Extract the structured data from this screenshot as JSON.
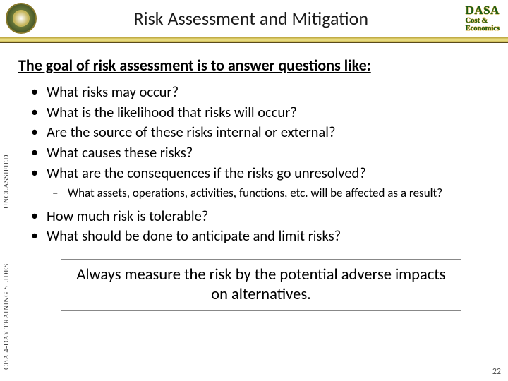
{
  "header": {
    "title": "Risk Assessment and Mitigation",
    "logo_line1": "DASA",
    "logo_line2": "Cost &",
    "logo_line3": "Economics"
  },
  "goal_heading": "The goal of risk assessment is to answer questions like:",
  "bullets_primary": [
    "What risks may occur?",
    "What is the likelihood that risks will occur?",
    "Are the source of these risks internal or external?",
    "What causes these risks?",
    "What are the consequences if the risks go unresolved?"
  ],
  "sub_bullets": [
    "What assets, operations, activities, functions, etc. will be affected as a result?"
  ],
  "bullets_secondary": [
    "How much risk is tolerable?",
    "What should be done to anticipate and limit risks?"
  ],
  "callout": "Always measure the risk by the potential adverse impacts on alternatives.",
  "side_labels": {
    "upper": "UNCLASSIFIED",
    "lower": "CBA  4-DAY  TRAINING  SLIDES"
  },
  "page_number": "22",
  "colors": {
    "gold_bar_dark": "#b8a03a",
    "gold_bar_light": "#f0e8a0",
    "dasa_green": "#1a5c1a",
    "dasa_gold": "#c9a227",
    "text": "#000000",
    "background": "#ffffff"
  }
}
